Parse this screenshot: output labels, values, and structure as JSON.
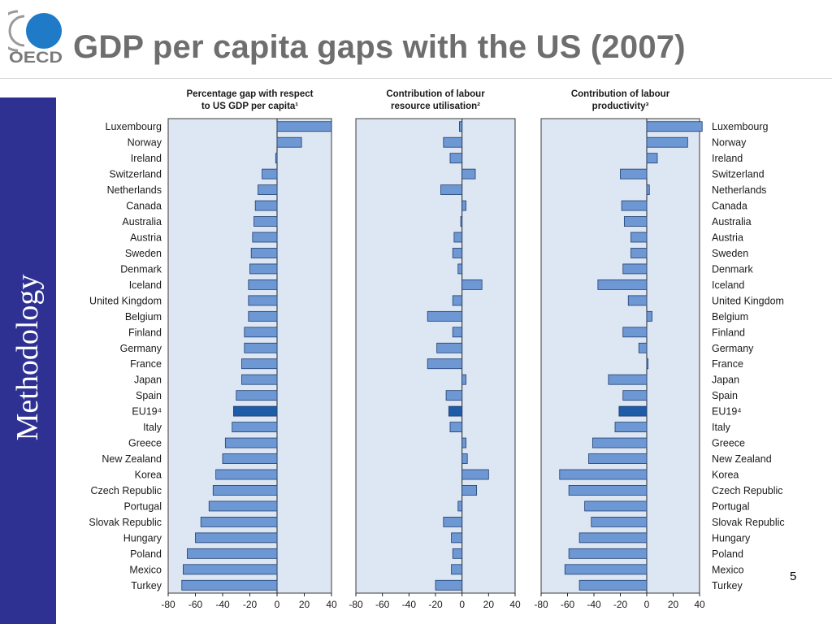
{
  "slide": {
    "title": "GDP per capita gaps with the US (2007)",
    "side_label": "Methodology",
    "page_number": "5",
    "logo_text": "OECD"
  },
  "colors": {
    "panel_bg": "#dde6f3",
    "bar": "#6e98d4",
    "bar_highlight": "#1f5ca8",
    "bar_stroke": "#1f3d6e",
    "side_band": "#2e3192",
    "logo_blue": "#1f7ac7",
    "logo_grey": "#9a9a9a"
  },
  "chart_data": {
    "type": "bar",
    "orientation": "horizontal",
    "countries": [
      "Luxembourg",
      "Norway",
      "Ireland",
      "Switzerland",
      "Netherlands",
      "Canada",
      "Australia",
      "Austria",
      "Sweden",
      "Denmark",
      "Iceland",
      "United Kingdom",
      "Belgium",
      "Finland",
      "Germany",
      "France",
      "Japan",
      "Spain",
      "EU19⁴",
      "Italy",
      "Greece",
      "New Zealand",
      "Korea",
      "Czech Republic",
      "Portugal",
      "Slovak Republic",
      "Hungary",
      "Poland",
      "Mexico",
      "Turkey"
    ],
    "highlight": "EU19⁴",
    "xlim": [
      -80,
      40
    ],
    "xticks": [
      "-80",
      "-60",
      "-40",
      "-20",
      "0",
      "20",
      "40"
    ],
    "grid": false,
    "panels": [
      {
        "title_line1": "Percentage gap with respect",
        "title_line2": "to US GDP per capita¹",
        "values": [
          40,
          18,
          -1,
          -11,
          -14,
          -16,
          -17,
          -18,
          -19,
          -20,
          -21,
          -21,
          -21,
          -24,
          -24,
          -26,
          -26,
          -30,
          -32,
          -33,
          -38,
          -40,
          -45,
          -47,
          -50,
          -56,
          -60,
          -66,
          -69,
          -70
        ]
      },
      {
        "title_line1": "Contribution of labour",
        "title_line2": "resource utilisation²",
        "values": [
          -2,
          -14,
          -9,
          10,
          -16,
          3,
          -1,
          -6,
          -7,
          -3,
          15,
          -7,
          -26,
          -7,
          -19,
          -26,
          3,
          -12,
          -10,
          -9,
          3,
          4,
          20,
          11,
          -3,
          -14,
          -8,
          -7,
          -8,
          -20
        ]
      },
      {
        "title_line1": "Contribution of labour",
        "title_line2": "productivity³",
        "values": [
          42,
          31,
          8,
          -20,
          2,
          -19,
          -17,
          -12,
          -12,
          -18,
          -37,
          -14,
          4,
          -18,
          -6,
          1,
          -29,
          -18,
          -21,
          -24,
          -41,
          -44,
          -66,
          -59,
          -47,
          -42,
          -51,
          -59,
          -62,
          -51
        ]
      }
    ]
  }
}
